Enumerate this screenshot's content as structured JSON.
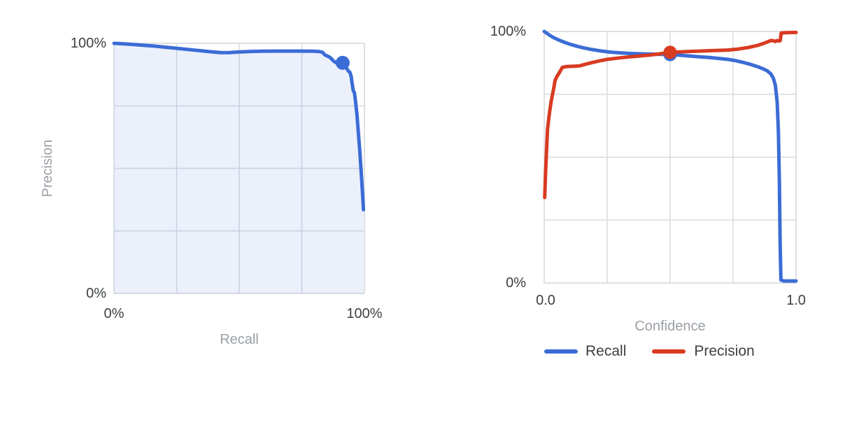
{
  "colors": {
    "blue": "#3B6CD6",
    "red": "#D93B21",
    "area_fill": "rgba(59,108,214,0.10)",
    "grid": "#DADCE0",
    "tick_text": "#3C4043",
    "muted_text": "#9AA0A6",
    "background": "#FFFFFF"
  },
  "chart_data": [
    {
      "type": "area",
      "name": "precision-recall-curve",
      "title": "",
      "xlabel": "Recall",
      "ylabel": "Precision",
      "x_ticks": [
        "0%",
        "100%"
      ],
      "y_ticks": [
        "0%",
        "100%"
      ],
      "xlim": [
        0,
        100
      ],
      "ylim": [
        0,
        100
      ],
      "grid": true,
      "grid_step": 25,
      "legend_position": "none",
      "series": [
        {
          "name": "precision_vs_recall",
          "color": "#3B6CD6",
          "fill": true,
          "points": [
            [
              0,
              100
            ],
            [
              4,
              99.8
            ],
            [
              8,
              99.5
            ],
            [
              12,
              99.2
            ],
            [
              16,
              98.9
            ],
            [
              20,
              98.5
            ],
            [
              24,
              98.1
            ],
            [
              28,
              97.7
            ],
            [
              32,
              97.3
            ],
            [
              36,
              96.9
            ],
            [
              40,
              96.5
            ],
            [
              43,
              96.25
            ],
            [
              46,
              96.3
            ],
            [
              50,
              96.55
            ],
            [
              55,
              96.75
            ],
            [
              60,
              96.85
            ],
            [
              65,
              96.9
            ],
            [
              70,
              96.9
            ],
            [
              75,
              96.9
            ],
            [
              79,
              96.85
            ],
            [
              82,
              96.7
            ],
            [
              83.3,
              96.4
            ],
            [
              84.2,
              95.4
            ],
            [
              85.2,
              94.9
            ],
            [
              86.2,
              94.4
            ],
            [
              87,
              93.6
            ],
            [
              87.8,
              92.8
            ],
            [
              88.7,
              92.3
            ],
            [
              89.6,
              92.2
            ],
            [
              90.5,
              92.2
            ],
            [
              91.3,
              92.2
            ],
            [
              92.2,
              91.3
            ],
            [
              92.9,
              90.0
            ],
            [
              93.6,
              88.9
            ],
            [
              94.2,
              88.4
            ],
            [
              94.7,
              86.8
            ],
            [
              95.1,
              83.8
            ],
            [
              95.5,
              81.2
            ],
            [
              96,
              80.2
            ],
            [
              96.4,
              77.2
            ],
            [
              97,
              71.5
            ],
            [
              97.6,
              64
            ],
            [
              98.2,
              56
            ],
            [
              98.8,
              47
            ],
            [
              99.3,
              39
            ],
            [
              99.6,
              33.5
            ]
          ]
        }
      ],
      "markers": [
        {
          "series": "precision_vs_recall",
          "x": 91.3,
          "y": 92.2,
          "color": "#3B6CD6"
        }
      ]
    },
    {
      "type": "line",
      "name": "recall-precision-vs-confidence",
      "title": "",
      "xlabel": "Confidence",
      "ylabel": "",
      "x_ticks": [
        "0.0",
        "1.0"
      ],
      "y_ticks": [
        "0%",
        "100%"
      ],
      "xlim": [
        0,
        1
      ],
      "ylim": [
        0,
        100
      ],
      "grid": true,
      "grid_step": 0.25,
      "legend": {
        "position": "bottom",
        "entries": [
          {
            "label": "Recall",
            "color": "#3B6CD6"
          },
          {
            "label": "Precision",
            "color": "#D93B21"
          }
        ]
      },
      "series": [
        {
          "name": "Recall",
          "color": "#3B6CD6",
          "fill": false,
          "points": [
            [
              0,
              100
            ],
            [
              0.02,
              98.6
            ],
            [
              0.04,
              97.4
            ],
            [
              0.06,
              96.5
            ],
            [
              0.08,
              95.7
            ],
            [
              0.1,
              95.0
            ],
            [
              0.13,
              94.1
            ],
            [
              0.16,
              93.4
            ],
            [
              0.19,
              92.8
            ],
            [
              0.22,
              92.3
            ],
            [
              0.26,
              91.8
            ],
            [
              0.3,
              91.5
            ],
            [
              0.34,
              91.25
            ],
            [
              0.38,
              91.1
            ],
            [
              0.42,
              91.0
            ],
            [
              0.46,
              90.9
            ],
            [
              0.5,
              90.8
            ],
            [
              0.54,
              90.55
            ],
            [
              0.58,
              90.2
            ],
            [
              0.62,
              89.9
            ],
            [
              0.66,
              89.6
            ],
            [
              0.7,
              89.2
            ],
            [
              0.73,
              88.9
            ],
            [
              0.76,
              88.4
            ],
            [
              0.79,
              87.7
            ],
            [
              0.82,
              86.9
            ],
            [
              0.85,
              85.9
            ],
            [
              0.87,
              85.1
            ],
            [
              0.885,
              84.4
            ],
            [
              0.9,
              83.1
            ],
            [
              0.91,
              81.4
            ],
            [
              0.918,
              78.5
            ],
            [
              0.925,
              72
            ],
            [
              0.93,
              60
            ],
            [
              0.934,
              40
            ],
            [
              0.937,
              15
            ],
            [
              0.94,
              1.2
            ],
            [
              0.95,
              0.8
            ],
            [
              1.0,
              0.8
            ]
          ]
        },
        {
          "name": "Precision",
          "color": "#D93B21",
          "fill": false,
          "points": [
            [
              0.002,
              34
            ],
            [
              0.005,
              43
            ],
            [
              0.009,
              52
            ],
            [
              0.013,
              61
            ],
            [
              0.02,
              67
            ],
            [
              0.028,
              72.5
            ],
            [
              0.036,
              76.5
            ],
            [
              0.043,
              80.5
            ],
            [
              0.05,
              82
            ],
            [
              0.06,
              83.6
            ],
            [
              0.072,
              85.7
            ],
            [
              0.085,
              86.0
            ],
            [
              0.1,
              86.1
            ],
            [
              0.12,
              86.2
            ],
            [
              0.14,
              86.3
            ],
            [
              0.165,
              87.0
            ],
            [
              0.19,
              87.6
            ],
            [
              0.22,
              88.3
            ],
            [
              0.25,
              88.9
            ],
            [
              0.29,
              89.4
            ],
            [
              0.33,
              89.8
            ],
            [
              0.375,
              90.2
            ],
            [
              0.42,
              90.6
            ],
            [
              0.46,
              91.1
            ],
            [
              0.5,
              91.7
            ],
            [
              0.54,
              91.9
            ],
            [
              0.58,
              92.05
            ],
            [
              0.62,
              92.2
            ],
            [
              0.66,
              92.35
            ],
            [
              0.7,
              92.5
            ],
            [
              0.73,
              92.6
            ],
            [
              0.77,
              93.0
            ],
            [
              0.81,
              93.6
            ],
            [
              0.845,
              94.4
            ],
            [
              0.87,
              95.2
            ],
            [
              0.89,
              96.0
            ],
            [
              0.9,
              96.4
            ],
            [
              0.91,
              96.3
            ],
            [
              0.917,
              96.0
            ],
            [
              0.924,
              96.4
            ],
            [
              0.93,
              96.2
            ],
            [
              0.937,
              96.3
            ],
            [
              0.941,
              99.4
            ],
            [
              0.96,
              99.5
            ],
            [
              1.0,
              99.6
            ]
          ]
        }
      ],
      "markers": [
        {
          "series": "Recall",
          "x": 0.5,
          "y": 90.8,
          "color": "#3B6CD6"
        },
        {
          "series": "Precision",
          "x": 0.5,
          "y": 91.7,
          "color": "#D93B21"
        }
      ]
    }
  ]
}
